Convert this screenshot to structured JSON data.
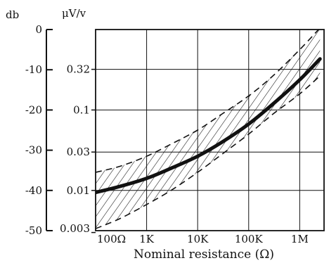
{
  "chart_data": {
    "type": "line",
    "title": "",
    "xlabel": "Nominal resistance (Ω)",
    "x_scale": "log",
    "xlim": [
      100,
      3000000
    ],
    "x_ticks": [
      {
        "value": 100,
        "label": "100Ω"
      },
      {
        "value": 1000,
        "label": "1K"
      },
      {
        "value": 10000,
        "label": "10K"
      },
      {
        "value": 100000,
        "label": "100K"
      },
      {
        "value": 1000000,
        "label": "1M"
      }
    ],
    "y_left": {
      "unit": "db",
      "scale": "linear",
      "ylim": [
        -50,
        0
      ],
      "ticks": [
        {
          "value": 0,
          "label": "0"
        },
        {
          "value": -10,
          "label": "-10"
        },
        {
          "value": -20,
          "label": "-20"
        },
        {
          "value": -30,
          "label": "-30"
        },
        {
          "value": -40,
          "label": "-40"
        },
        {
          "value": -50,
          "label": "-50"
        }
      ]
    },
    "y_right": {
      "unit": "μV/v",
      "scale": "log",
      "ticks": [
        {
          "value": 0.32,
          "label": "0.32"
        },
        {
          "value": 0.1,
          "label": "0.1"
        },
        {
          "value": 0.03,
          "label": "0.03"
        },
        {
          "value": 0.01,
          "label": "0.01"
        },
        {
          "value": 0.003,
          "label": "0.003"
        }
      ]
    },
    "grid": true,
    "series": [
      {
        "role": "typical",
        "style": "solid-thick",
        "x": [
          100,
          300,
          1000,
          3000,
          10000,
          30000,
          100000,
          300000,
          1000000,
          2500000
        ],
        "y": [
          -40.5,
          -39,
          -37,
          -34.5,
          -31.5,
          -28,
          -23.5,
          -18.5,
          -12.5,
          -7.3
        ]
      },
      {
        "role": "upper-bound",
        "style": "dashed",
        "x": [
          100,
          300,
          1000,
          3000,
          10000,
          30000,
          100000,
          300000,
          1000000,
          2500000
        ],
        "y": [
          -35.5,
          -34,
          -31.5,
          -28.5,
          -25,
          -21,
          -16.5,
          -11.5,
          -5,
          0.4
        ]
      },
      {
        "role": "lower-bound",
        "style": "dashed",
        "x": [
          100,
          300,
          1000,
          3000,
          10000,
          30000,
          100000,
          300000,
          1000000,
          2500000
        ],
        "y": [
          -49.5,
          -47,
          -43.5,
          -40,
          -35.5,
          -31,
          -26,
          -21,
          -16,
          -11.5
        ]
      }
    ],
    "band": {
      "between": [
        "upper-bound",
        "lower-bound"
      ],
      "fill": "diagonal-hatch"
    }
  },
  "colors": {
    "ink": "#111111",
    "background": "#ffffff"
  }
}
